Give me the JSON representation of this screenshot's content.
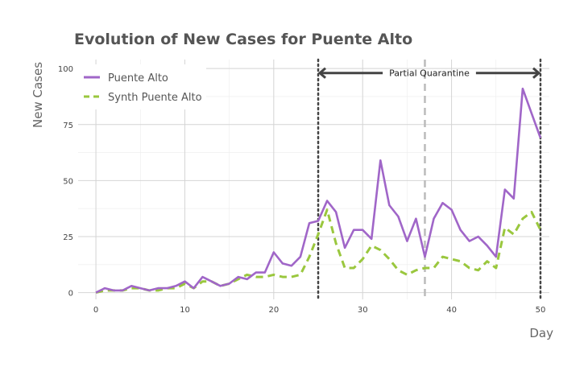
{
  "chart_data": {
    "type": "line",
    "title": "Evolution of New Cases for Puente Alto",
    "xlabel": "Day",
    "ylabel": "New Cases",
    "xlim": [
      -2,
      51
    ],
    "ylim": [
      -3,
      104
    ],
    "x_ticks": [
      0,
      10,
      20,
      30,
      40,
      50
    ],
    "y_ticks": [
      0,
      25,
      50,
      75,
      100
    ],
    "grid": true,
    "legend_position": "top-left",
    "series": [
      {
        "name": "Puente Alto",
        "color": "#a066c8",
        "style": "solid",
        "x": [
          0,
          1,
          2,
          3,
          4,
          5,
          6,
          7,
          8,
          9,
          10,
          11,
          12,
          13,
          14,
          15,
          16,
          17,
          18,
          19,
          20,
          21,
          22,
          23,
          24,
          25,
          26,
          27,
          28,
          29,
          30,
          31,
          32,
          33,
          34,
          35,
          36,
          37,
          38,
          39,
          40,
          41,
          42,
          43,
          44,
          45,
          46,
          47,
          48,
          49,
          50
        ],
        "values": [
          0,
          2,
          1,
          1,
          3,
          2,
          1,
          2,
          2,
          3,
          5,
          2,
          7,
          5,
          3,
          4,
          7,
          6,
          9,
          9,
          18,
          13,
          12,
          16,
          31,
          32,
          41,
          36,
          20,
          28,
          28,
          24,
          59,
          39,
          34,
          23,
          33,
          16,
          33,
          40,
          37,
          28,
          23,
          25,
          21,
          16,
          46,
          42,
          91,
          80,
          69
        ]
      },
      {
        "name": "Synth Puente Alto",
        "color": "#9ac73e",
        "style": "dashed",
        "x": [
          0,
          1,
          2,
          3,
          4,
          5,
          6,
          7,
          8,
          9,
          10,
          11,
          12,
          13,
          14,
          15,
          16,
          17,
          18,
          19,
          20,
          21,
          22,
          23,
          24,
          25,
          26,
          27,
          28,
          29,
          30,
          31,
          32,
          33,
          34,
          35,
          36,
          37,
          38,
          39,
          40,
          41,
          42,
          43,
          44,
          45,
          46,
          47,
          48,
          49,
          50
        ],
        "values": [
          0,
          1,
          1,
          1,
          2,
          2,
          1,
          1,
          2,
          2,
          4,
          2,
          5,
          5,
          3,
          4,
          6,
          8,
          7,
          7,
          8,
          7,
          7,
          8,
          16,
          26,
          37,
          22,
          11,
          11,
          15,
          21,
          19,
          15,
          10,
          8,
          10,
          11,
          11,
          16,
          15,
          14,
          11,
          10,
          14,
          11,
          29,
          26,
          33,
          36,
          28
        ]
      }
    ],
    "annotations": [
      {
        "type": "vline",
        "x": 25,
        "style": "dotted",
        "color": "#444444"
      },
      {
        "type": "vline",
        "x": 50,
        "style": "dotted",
        "color": "#444444"
      },
      {
        "type": "vline",
        "x": 37,
        "style": "dashed",
        "color": "#bbbbbb"
      },
      {
        "type": "arrow",
        "x_from": 25,
        "x_to": 50,
        "y": 98,
        "label": "Partial Quarantine",
        "color": "#444444"
      }
    ]
  }
}
